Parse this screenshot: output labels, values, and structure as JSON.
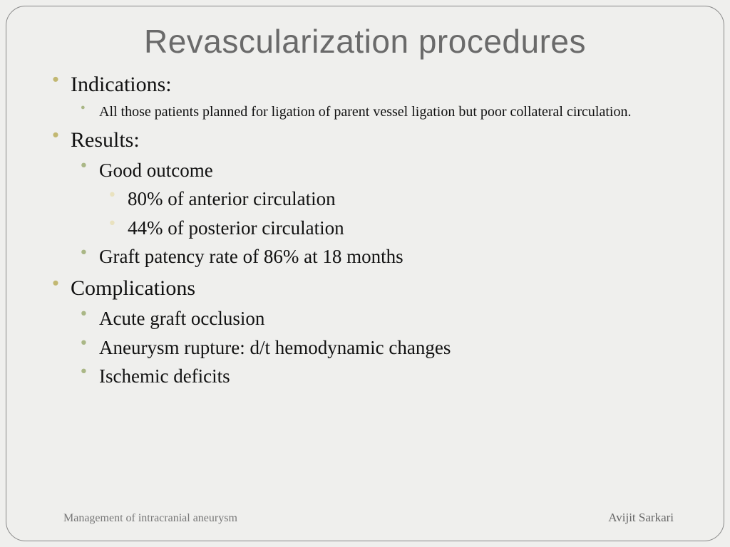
{
  "title": "Revascularization procedures",
  "colors": {
    "background": "#efefed",
    "title_color": "#6a6a6a",
    "frame_border": "#888888",
    "bullet_level1": "#c2b872",
    "bullet_level2": "#aab786",
    "bullet_level3": "#e9e2bf",
    "body_text": "#111111",
    "footer_text": "#777777"
  },
  "typography": {
    "title_font": "Segoe UI Light / sans-serif",
    "title_size_pt": 34,
    "body_font": "Garamond / serif",
    "l1_size_pt": 22,
    "l2_size_pt": 20,
    "l2_small_size_pt": 15,
    "l3_size_pt": 20
  },
  "content": {
    "indications": {
      "label": "Indications:",
      "items": [
        "All those patients planned for ligation of parent vessel ligation but poor collateral circulation."
      ]
    },
    "results": {
      "label": "Results:",
      "good_outcome": {
        "label": "Good outcome",
        "items": [
          "80% of anterior circulation",
          "44% of posterior circulation"
        ]
      },
      "graft_patency": "Graft patency rate of 86% at 18 months"
    },
    "complications": {
      "label": "Complications",
      "items": [
        "Acute graft occlusion",
        "Aneurysm rupture: d/t hemodynamic changes",
        "Ischemic deficits"
      ]
    }
  },
  "footer": {
    "left": "Management of intracranial aneurysm",
    "right": "Avijit Sarkari"
  }
}
